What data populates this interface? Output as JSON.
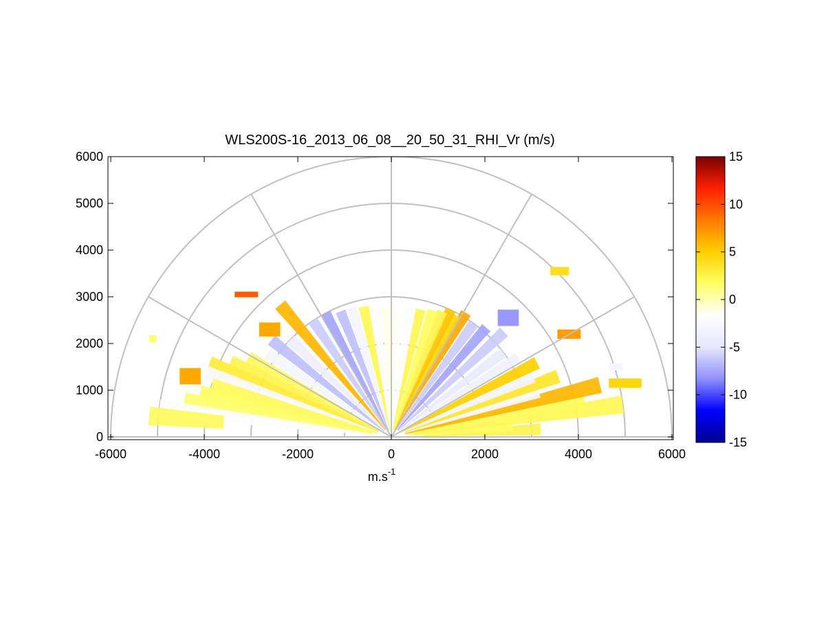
{
  "chart_data": {
    "type": "heatmap",
    "subtype": "polar RHI sector (half-disc range-height plot)",
    "title": "WLS200S-16_2013_06_08__20_50_31_RHI_Vr (m/s)",
    "xlabel": "m.s",
    "xlabel_superscript": "-1",
    "ylabel": "",
    "xlim": [
      -6000,
      6000
    ],
    "ylim": [
      0,
      6000
    ],
    "x_ticks": [
      -6000,
      -4000,
      -2000,
      0,
      2000,
      4000,
      6000
    ],
    "x_tick_labels": [
      "-6000",
      "-4000",
      "-2000",
      "0",
      "2000",
      "4000",
      "6000"
    ],
    "y_ticks": [
      0,
      1000,
      2000,
      3000,
      4000,
      5000,
      6000
    ],
    "y_tick_labels": [
      "0",
      "1000",
      "2000",
      "3000",
      "4000",
      "5000",
      "6000"
    ],
    "polar_grid": {
      "range_rings": [
        1000,
        2000,
        3000,
        4000,
        5000,
        6000
      ],
      "spoke_angles_deg": [
        0,
        30,
        60,
        90,
        120,
        150,
        180
      ]
    },
    "colorbar": {
      "min": -15,
      "max": 15,
      "ticks": [
        15,
        10,
        5,
        0,
        -5,
        -10,
        -15
      ],
      "tick_labels": [
        "15",
        "10",
        "5",
        "0",
        "-5",
        "-10",
        "-15"
      ],
      "colors_bottom_to_top": [
        "#00008f",
        "#0000ff",
        "#8f8fff",
        "#e6e6ff",
        "#ffffff",
        "#ffff66",
        "#ffd000",
        "#ff7a00",
        "#ff2000",
        "#7a0000"
      ]
    },
    "sectors": [
      {
        "az": 3,
        "r0": 700,
        "r1": 3200,
        "vr": 2.5
      },
      {
        "az": 5,
        "r0": 500,
        "r1": 2600,
        "vr": 1.8
      },
      {
        "az": 8,
        "r0": 400,
        "r1": 5000,
        "vr": 2.2
      },
      {
        "az": 11,
        "r0": 300,
        "r1": 4200,
        "vr": 2.0
      },
      {
        "az": 14,
        "r0": 300,
        "r1": 4600,
        "vr": 6.0
      },
      {
        "az": 17,
        "r0": 300,
        "r1": 3300,
        "vr": -2.5
      },
      {
        "az": 20,
        "r0": 300,
        "r1": 3800,
        "vr": 3.5
      },
      {
        "az": 23,
        "r0": 300,
        "r1": 3300,
        "vr": -3.0
      },
      {
        "az": 27,
        "r0": 200,
        "r1": 3500,
        "vr": 5.0
      },
      {
        "az": 32,
        "r0": 200,
        "r1": 3200,
        "vr": -3.5
      },
      {
        "az": 37,
        "r0": 200,
        "r1": 3000,
        "vr": -4.5
      },
      {
        "az": 43,
        "r0": 200,
        "r1": 3300,
        "vr": -6.0
      },
      {
        "az": 49,
        "r0": 200,
        "r1": 3100,
        "vr": -7.5
      },
      {
        "az": 54,
        "r0": 200,
        "r1": 3000,
        "vr": -6.0
      },
      {
        "az": 59,
        "r0": 150,
        "r1": 3100,
        "vr": 6.5
      },
      {
        "az": 62,
        "r0": 150,
        "r1": 2950,
        "vr": 4.5
      },
      {
        "az": 65,
        "r0": 150,
        "r1": 3000,
        "vr": 5.5
      },
      {
        "az": 68,
        "r0": 150,
        "r1": 2900,
        "vr": 2.5
      },
      {
        "az": 72,
        "r0": 150,
        "r1": 2850,
        "vr": 1.8
      },
      {
        "az": 77,
        "r0": 150,
        "r1": 2800,
        "vr": 2.3
      },
      {
        "az": 82,
        "r0": 150,
        "r1": 2800,
        "vr": -2.0
      },
      {
        "az": 87,
        "r0": 100,
        "r1": 2800,
        "vr": -1.5
      },
      {
        "az": 92,
        "r0": 100,
        "r1": 2800,
        "vr": -1.2
      },
      {
        "az": 97,
        "r0": 100,
        "r1": 2800,
        "vr": -2.0
      },
      {
        "az": 102,
        "r0": 150,
        "r1": 2850,
        "vr": 2.2
      },
      {
        "az": 107,
        "r0": 150,
        "r1": 2900,
        "vr": -3.0
      },
      {
        "az": 112,
        "r0": 150,
        "r1": 2900,
        "vr": -6.5
      },
      {
        "az": 118,
        "r0": 150,
        "r1": 3000,
        "vr": -7.5
      },
      {
        "az": 124,
        "r0": 200,
        "r1": 3000,
        "vr": -6.0
      },
      {
        "az": 130,
        "r0": 200,
        "r1": 3700,
        "vr": 6.0
      },
      {
        "az": 136,
        "r0": 200,
        "r1": 3000,
        "vr": -4.0
      },
      {
        "az": 141,
        "r0": 200,
        "r1": 3300,
        "vr": -6.5
      },
      {
        "az": 146,
        "r0": 300,
        "r1": 3200,
        "vr": -3.0
      },
      {
        "az": 151,
        "r0": 300,
        "r1": 3500,
        "vr": 2.0
      },
      {
        "az": 155,
        "r0": 300,
        "r1": 3800,
        "vr": 2.5
      },
      {
        "az": 158,
        "r0": 300,
        "r1": 4200,
        "vr": 3.0
      },
      {
        "az": 161,
        "r0": 300,
        "r1": 4200,
        "vr": -2.5
      },
      {
        "az": 164,
        "r0": 300,
        "r1": 4000,
        "vr": 2.0
      },
      {
        "az": 167,
        "r0": 400,
        "r1": 4200,
        "vr": 1.8
      },
      {
        "az": 170,
        "r0": 400,
        "r1": 4500,
        "vr": 1.5
      },
      {
        "az": 173,
        "r0": 500,
        "r1": 5000,
        "vr": -2.0
      },
      {
        "az": 175,
        "r0": 3600,
        "r1": 5200,
        "vr": 2.0
      }
    ],
    "patches": [
      {
        "x": 3600,
        "y": 3550,
        "w": 400,
        "h": 180,
        "vr": 4.0
      },
      {
        "x": -4300,
        "y": 1300,
        "w": 450,
        "h": 350,
        "vr": 6.5
      },
      {
        "x": -2600,
        "y": 2300,
        "w": 450,
        "h": 300,
        "vr": 6.5
      },
      {
        "x": -3100,
        "y": 3050,
        "w": 500,
        "h": 120,
        "vr": 9.5
      },
      {
        "x": -5100,
        "y": 2100,
        "w": 150,
        "h": 150,
        "vr": 1.5
      },
      {
        "x": 3800,
        "y": 2200,
        "w": 500,
        "h": 200,
        "vr": 7.0
      },
      {
        "x": 5000,
        "y": 1150,
        "w": 700,
        "h": 200,
        "vr": 4.5
      },
      {
        "x": 4800,
        "y": 1500,
        "w": 300,
        "h": 150,
        "vr": -3.0
      },
      {
        "x": 2500,
        "y": 2550,
        "w": 450,
        "h": 350,
        "vr": -8.0
      }
    ]
  }
}
